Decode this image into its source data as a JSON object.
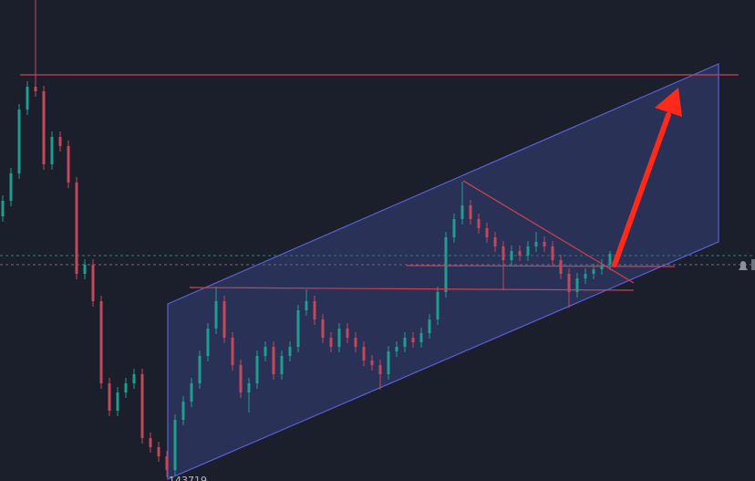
{
  "chart_data": {
    "type": "candlestick",
    "up_color": "#1f9e8f",
    "down_color": "#c2485a",
    "ylim": [
      0,
      527
    ],
    "label": "143719",
    "open": [
      290,
      307,
      337,
      407,
      432,
      427,
      347,
      377,
      367,
      327,
      227,
      237,
      197,
      107,
      77,
      97,
      107,
      117,
      47,
      37,
      27,
      12,
      67,
      87,
      107,
      137,
      167,
      197,
      157,
      127,
      97,
      107,
      137,
      147,
      117,
      137,
      147,
      187,
      197,
      177,
      157,
      147,
      167,
      157,
      147,
      132,
      127,
      117,
      142,
      147,
      157,
      152,
      162,
      177,
      207,
      267,
      287,
      302,
      287,
      277,
      267,
      257,
      242,
      252,
      247,
      257,
      262,
      257,
      242,
      227,
      207,
      222,
      227,
      232,
      237
    ],
    "high": [
      313,
      343,
      413,
      438,
      527,
      433,
      383,
      383,
      373,
      333,
      243,
      243,
      203,
      113,
      103,
      113,
      123,
      123,
      53,
      43,
      33,
      73,
      93,
      113,
      143,
      173,
      213,
      203,
      163,
      133,
      113,
      143,
      153,
      153,
      143,
      153,
      193,
      210,
      203,
      183,
      163,
      173,
      173,
      163,
      153,
      138,
      133,
      148,
      153,
      163,
      163,
      168,
      183,
      213,
      273,
      293,
      328,
      308,
      293,
      283,
      273,
      263,
      258,
      258,
      263,
      273,
      268,
      263,
      248,
      233,
      228,
      233,
      238,
      243,
      252
    ],
    "low": [
      284,
      301,
      331,
      401,
      421,
      341,
      341,
      361,
      321,
      221,
      221,
      191,
      101,
      71,
      71,
      91,
      101,
      41,
      31,
      21,
      4,
      6,
      61,
      81,
      101,
      131,
      161,
      151,
      121,
      91,
      75,
      101,
      131,
      111,
      111,
      131,
      141,
      181,
      171,
      151,
      141,
      141,
      151,
      141,
      126,
      121,
      100,
      111,
      136,
      141,
      146,
      146,
      156,
      171,
      201,
      261,
      281,
      281,
      271,
      261,
      251,
      209,
      236,
      241,
      241,
      251,
      251,
      236,
      221,
      190,
      201,
      216,
      221,
      226,
      231
    ],
    "close": [
      307,
      337,
      407,
      432,
      427,
      347,
      377,
      367,
      327,
      227,
      237,
      197,
      107,
      77,
      97,
      107,
      117,
      47,
      37,
      27,
      12,
      67,
      87,
      107,
      137,
      167,
      197,
      157,
      127,
      97,
      107,
      137,
      147,
      117,
      137,
      147,
      187,
      197,
      177,
      157,
      147,
      167,
      157,
      147,
      132,
      127,
      117,
      142,
      147,
      157,
      152,
      162,
      177,
      207,
      267,
      287,
      302,
      287,
      277,
      267,
      257,
      242,
      252,
      247,
      257,
      262,
      257,
      242,
      227,
      207,
      222,
      227,
      232,
      237,
      249
    ]
  }
}
